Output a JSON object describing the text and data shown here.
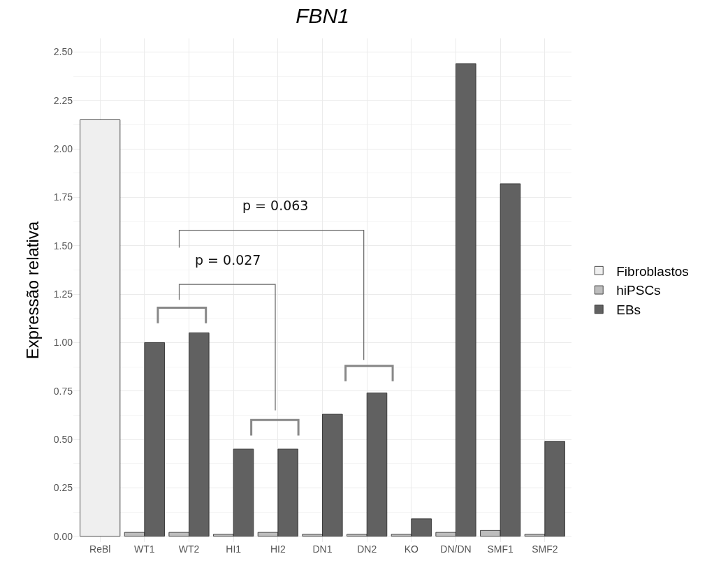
{
  "chart_data": {
    "type": "bar",
    "title": "FBN1",
    "ylabel": "Expressão relativa",
    "categories": [
      "ReBl",
      "WT1",
      "WT2",
      "HI1",
      "HI2",
      "DN1",
      "DN2",
      "KO",
      "DN/DN",
      "SMF1",
      "SMF2"
    ],
    "series": [
      {
        "name": "Fibroblastos",
        "color": "#efefef",
        "values": [
          2.15,
          null,
          null,
          null,
          null,
          null,
          null,
          null,
          null,
          null,
          null
        ]
      },
      {
        "name": "hiPSCs",
        "color": "#bdbdbd",
        "values": [
          null,
          0.02,
          0.02,
          0.01,
          0.02,
          0.01,
          0.01,
          0.01,
          0.02,
          0.03,
          0.01
        ]
      },
      {
        "name": "EBs",
        "color": "#616161",
        "values": [
          null,
          1.0,
          1.05,
          0.45,
          0.45,
          0.63,
          0.74,
          0.09,
          2.44,
          1.82,
          0.49
        ]
      }
    ],
    "ylim": [
      -0.03,
      2.57
    ],
    "yticks": [
      {
        "value": 0,
        "label": "0.00"
      },
      {
        "value": 0.25,
        "label": "0.25"
      },
      {
        "value": 0.5,
        "label": "0.50"
      },
      {
        "value": 0.75,
        "label": "0.75"
      },
      {
        "value": 1,
        "label": "1.00"
      },
      {
        "value": 1.25,
        "label": "1.25"
      },
      {
        "value": 1.5,
        "label": "1.50"
      },
      {
        "value": 1.75,
        "label": "1.75"
      },
      {
        "value": 2,
        "label": "2.00"
      },
      {
        "value": 2.25,
        "label": "2.25"
      },
      {
        "value": 2.5,
        "label": "2.50"
      }
    ],
    "grid": true,
    "legend": "right",
    "annotations": [
      "p = 0.063",
      "p = 0.027"
    ]
  }
}
